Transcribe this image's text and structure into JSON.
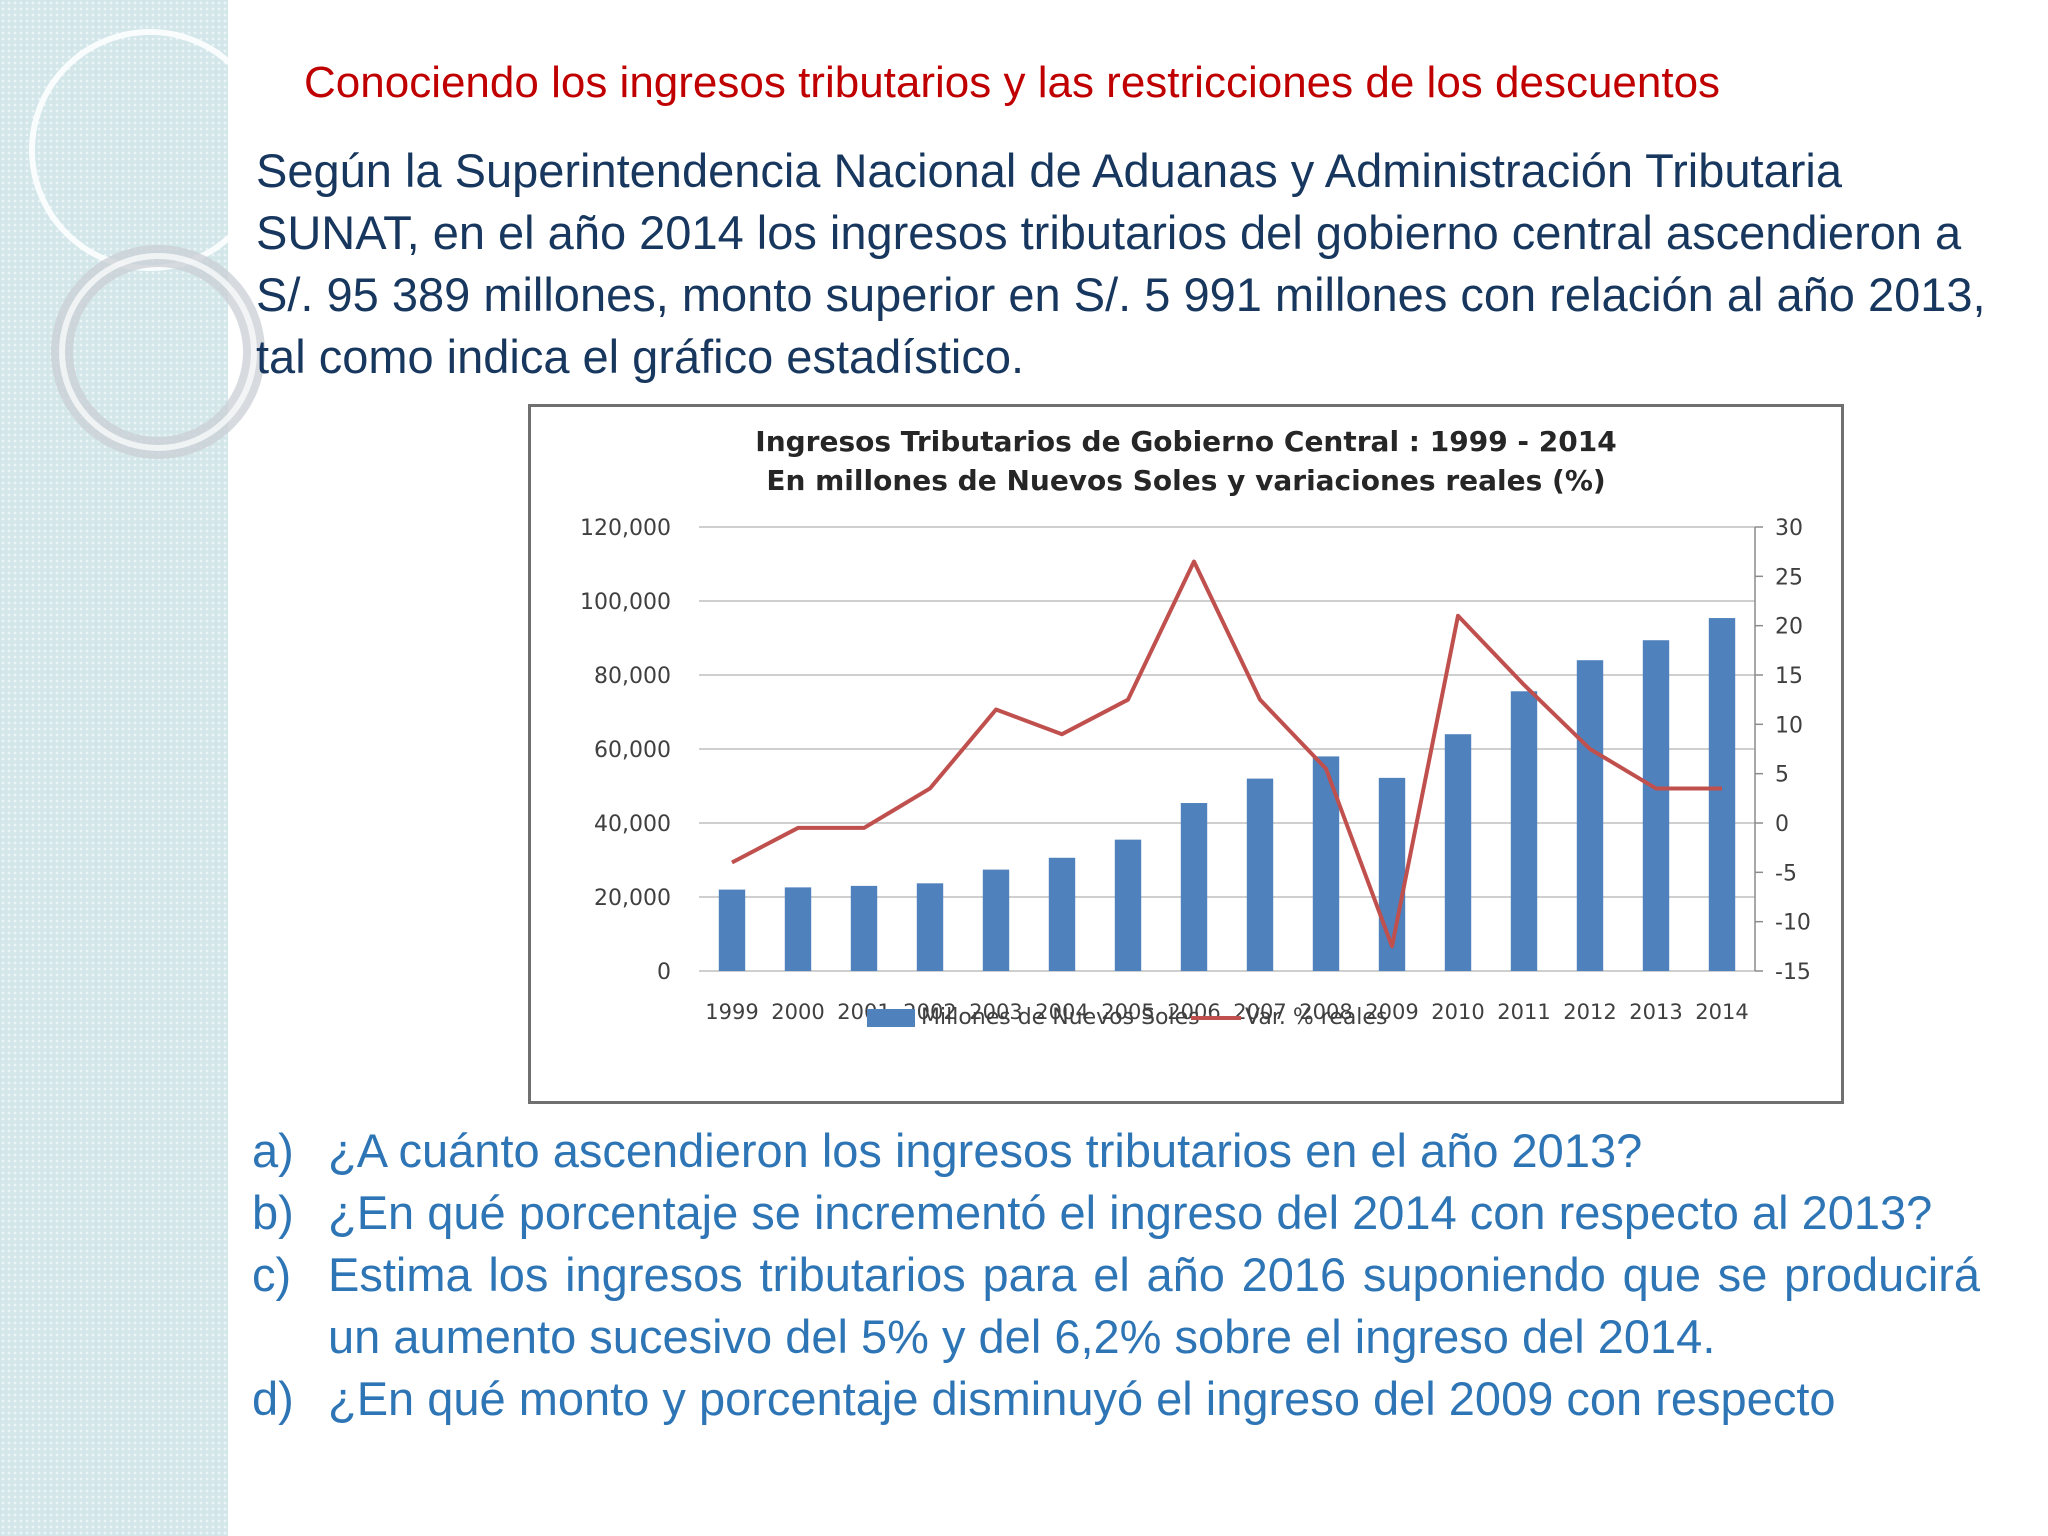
{
  "slide": {
    "title": "Conociendo los ingresos tributarios y las restricciones de los descuentos",
    "intro": "Según la Superintendencia Nacional de Aduanas y Administración Tributaria SUNAT, en el año 2014 los ingresos tributarios del gobierno central ascendieron a S/. 95 389 millones, monto superior en S/. 5 991 millones con relación al año 2013, tal como indica el gráfico estadístico."
  },
  "questions": [
    {
      "letter": "a)",
      "text": "¿A cuánto ascendieron los ingresos tributarios en el año 2013?"
    },
    {
      "letter": "b)",
      "text": "¿En qué porcentaje se incrementó el ingreso del 2014 con respecto al 2013?"
    },
    {
      "letter": "c)",
      "text": "Estima los ingresos tributarios para el año 2016 suponiendo que se producirá un aumento sucesivo del 5% y del 6,2% sobre el ingreso del 2014."
    },
    {
      "letter": "d)",
      "text": "¿En qué monto y porcentaje disminuyó el ingreso del 2009 con respecto"
    }
  ],
  "chart_data": {
    "type": "bar",
    "title": "Ingresos Tributarios de Gobierno Central : 1999 - 2014",
    "subtitle": "En millones de Nuevos Soles y variaciones reales (%)",
    "categories": [
      "1999",
      "2000",
      "2001",
      "2002",
      "2003",
      "2004",
      "2005",
      "2006",
      "2007",
      "2008",
      "2009",
      "2010",
      "2011",
      "2012",
      "2013",
      "2014"
    ],
    "series": [
      {
        "name": "Millones de Nuevos Soles",
        "type": "bar",
        "axis": "left",
        "color": "#4f81bd",
        "values": [
          22000,
          22600,
          23000,
          23700,
          27400,
          30600,
          35500,
          45400,
          52000,
          58000,
          52200,
          64000,
          75600,
          84000,
          89400,
          95389
        ]
      },
      {
        "name": "Var. % reales",
        "type": "line",
        "axis": "right",
        "color": "#c0504d",
        "values": [
          -4,
          -0.5,
          -0.5,
          3.5,
          11.5,
          9,
          12.5,
          26.5,
          12.5,
          5.5,
          -12.5,
          21,
          14,
          7.5,
          3.5,
          3.5
        ]
      }
    ],
    "y_left": {
      "min": 0,
      "max": 120000,
      "ticks": [
        "0",
        "20,000",
        "40,000",
        "60,000",
        "80,000",
        "100,000",
        "120,000"
      ]
    },
    "y_right": {
      "min": -15,
      "max": 30,
      "ticks": [
        "-15",
        "-10",
        "-5",
        "0",
        "5",
        "10",
        "15",
        "20",
        "25",
        "30"
      ]
    },
    "grid": true,
    "legend": "bottom"
  }
}
